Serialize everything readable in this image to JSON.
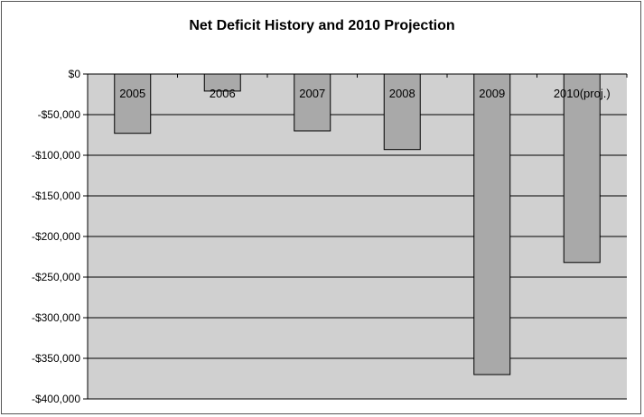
{
  "chart_data": {
    "type": "bar",
    "title": "Net Deficit History and 2010 Projection",
    "categories": [
      "2005",
      "2006",
      "2007",
      "2008",
      "2009",
      "2010(proj.)"
    ],
    "values": [
      -73000,
      -21000,
      -70000,
      -93000,
      -370000,
      -232000
    ],
    "ylim": [
      -400000,
      0
    ],
    "yticks": [
      0,
      -50000,
      -100000,
      -150000,
      -200000,
      -250000,
      -300000,
      -350000,
      -400000
    ],
    "ytick_labels": [
      "$0",
      "-$50,000",
      "-$100,000",
      "-$150,000",
      "-$200,000",
      "-$250,000",
      "-$300,000",
      "-$350,000",
      "-$400,000"
    ],
    "grid": true,
    "colors": {
      "plot_background": "#d0d0d0",
      "bar_fill": "#a9a9a9",
      "bar_stroke": "#000000",
      "gridline": "#000000"
    }
  }
}
